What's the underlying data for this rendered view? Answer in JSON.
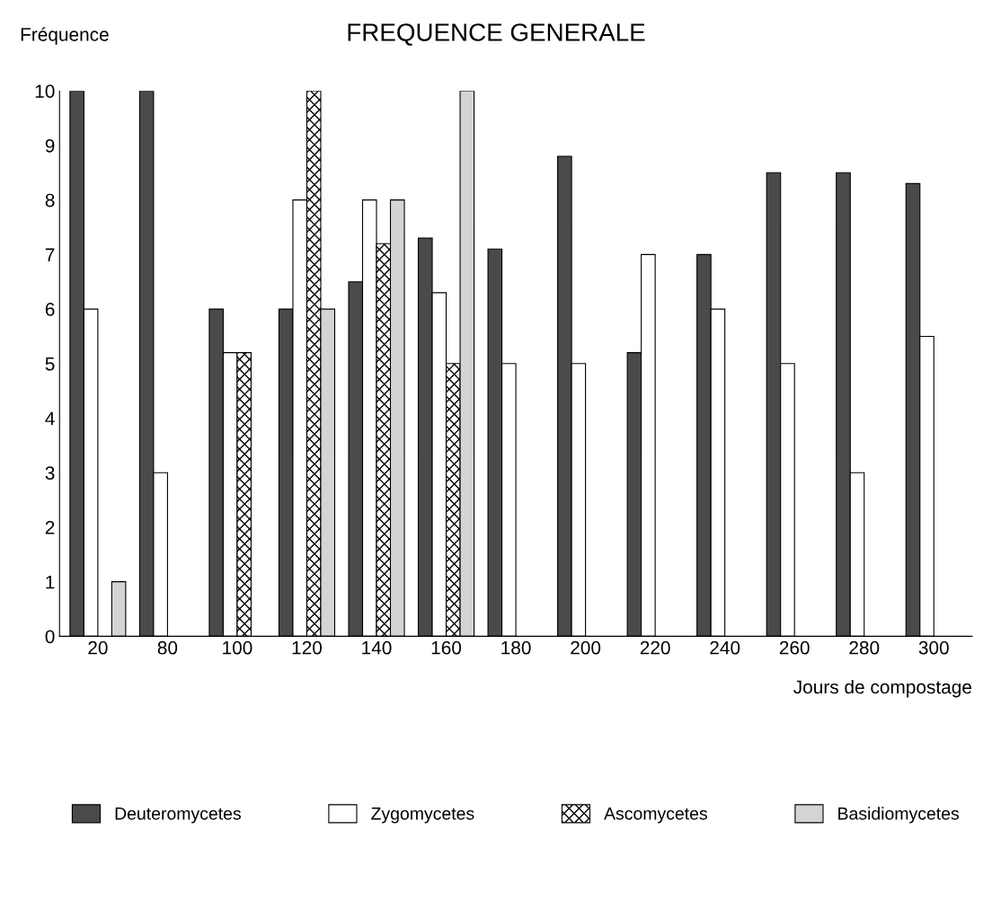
{
  "chart_data": {
    "type": "bar",
    "title": "FREQUENCE GENERALE",
    "xlabel": "Jours de compostage",
    "ylabel": "Fréquence",
    "categories": [
      "20",
      "80",
      "100",
      "120",
      "140",
      "160",
      "180",
      "200",
      "220",
      "240",
      "260",
      "280",
      "300"
    ],
    "series": [
      {
        "name": "Deuteromycetes",
        "color": "#4a4a4a",
        "values": [
          10,
          10,
          6,
          6,
          6.5,
          7.3,
          7.1,
          8.8,
          5.2,
          7,
          8.5,
          8.5,
          8.3
        ]
      },
      {
        "name": "Zygomycetes",
        "color": "#ffffff",
        "values": [
          6,
          3,
          5.2,
          8,
          8,
          6.3,
          5,
          5,
          7,
          6,
          5,
          3,
          5.5
        ]
      },
      {
        "name": "Ascomycetes",
        "color": "#000000",
        "values": [
          null,
          null,
          5.2,
          10,
          7.2,
          5,
          null,
          null,
          null,
          null,
          null,
          null,
          null
        ]
      },
      {
        "name": "Basidiomycetes",
        "color": "#d4d4d4",
        "values": [
          1,
          null,
          null,
          6,
          8,
          10,
          null,
          null,
          null,
          null,
          null,
          null,
          null
        ]
      }
    ],
    "ylim": [
      0,
      10
    ],
    "yticks": [
      0,
      1,
      2,
      3,
      4,
      5,
      6,
      7,
      8,
      9,
      10
    ],
    "grid": false,
    "legend": "bottom"
  }
}
